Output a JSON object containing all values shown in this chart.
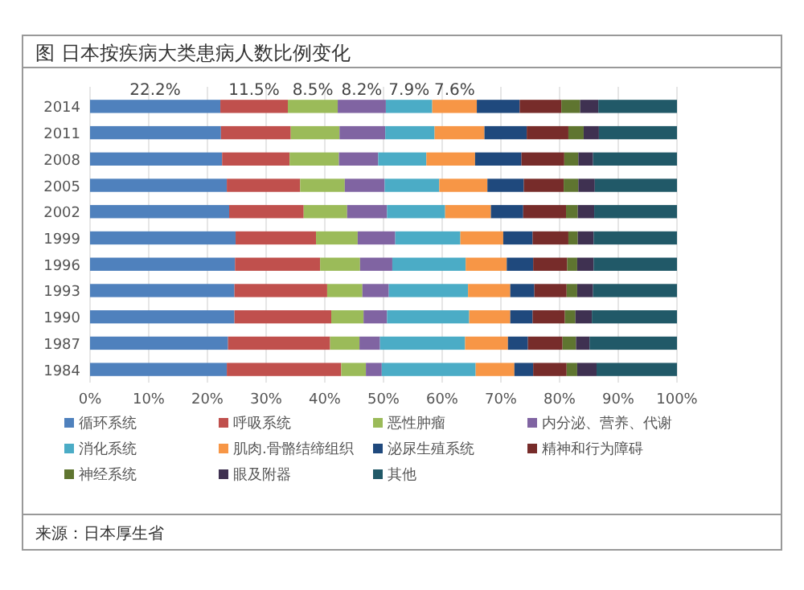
{
  "chart_data": {
    "type": "bar",
    "orientation": "horizontal",
    "stacked": true,
    "title": "图  日本按疾病大类患病人数比例变化",
    "annotations": [
      "来源：日本厚生省"
    ],
    "categories": [
      "2014",
      "2011",
      "2008",
      "2005",
      "2002",
      "1999",
      "1996",
      "1993",
      "1990",
      "1987",
      "1984"
    ],
    "xlim": [
      0,
      100
    ],
    "xticks": [
      {
        "value": 0,
        "label": "0%"
      },
      {
        "value": 10,
        "label": "10%"
      },
      {
        "value": 20,
        "label": "20%"
      },
      {
        "value": 30,
        "label": "30%"
      },
      {
        "value": 40,
        "label": "40%"
      },
      {
        "value": 50,
        "label": "50%"
      },
      {
        "value": 60,
        "label": "60%"
      },
      {
        "value": 70,
        "label": "70%"
      },
      {
        "value": 80,
        "label": "80%"
      },
      {
        "value": 90,
        "label": "90%"
      },
      {
        "value": 100,
        "label": "100%"
      }
    ],
    "grid": "x",
    "legend": "bottom",
    "series": [
      {
        "name": "循环系统",
        "color": "#4f81bd",
        "values": [
          22.2,
          22.3,
          22.5,
          23.3,
          23.7,
          24.8,
          24.7,
          24.6,
          24.6,
          23.5,
          23.3
        ],
        "value_labels": [
          "22.2%",
          null,
          null,
          null,
          null,
          null,
          null,
          null,
          null,
          null,
          null
        ]
      },
      {
        "name": "呼吸系统",
        "color": "#c0504d",
        "values": [
          11.5,
          11.9,
          11.5,
          12.5,
          12.7,
          13.7,
          14.5,
          15.8,
          16.5,
          17.4,
          19.5
        ],
        "value_labels": [
          "11.5%",
          null,
          null,
          null,
          null,
          null,
          null,
          null,
          null,
          null,
          null
        ]
      },
      {
        "name": "恶性肿瘤",
        "color": "#9bbb59",
        "values": [
          8.5,
          8.3,
          8.4,
          7.6,
          7.4,
          7.1,
          6.8,
          6.0,
          5.5,
          5.0,
          4.2
        ],
        "value_labels": [
          "8.5%",
          null,
          null,
          null,
          null,
          null,
          null,
          null,
          null,
          null,
          null
        ]
      },
      {
        "name": "内分泌、营养、代谢",
        "color": "#8064a2",
        "values": [
          8.2,
          7.8,
          6.7,
          6.8,
          6.8,
          6.4,
          5.5,
          4.5,
          4.0,
          3.5,
          2.7
        ],
        "value_labels": [
          "8.2%",
          null,
          null,
          null,
          null,
          null,
          null,
          null,
          null,
          null,
          null
        ]
      },
      {
        "name": "消化系统",
        "color": "#4bacc6",
        "values": [
          7.9,
          8.4,
          8.2,
          9.3,
          9.9,
          11.1,
          12.5,
          13.5,
          14.0,
          14.5,
          16.0
        ],
        "value_labels": [
          "7.9%",
          null,
          null,
          null,
          null,
          null,
          null,
          null,
          null,
          null,
          null
        ]
      },
      {
        "name": "肌肉.骨骼结缔组织",
        "color": "#f79646",
        "values": [
          7.6,
          8.5,
          8.3,
          8.2,
          7.8,
          7.3,
          7.0,
          7.2,
          7.0,
          7.3,
          6.6
        ],
        "value_labels": [
          "7.6%",
          null,
          null,
          null,
          null,
          null,
          null,
          null,
          null,
          null,
          null
        ]
      },
      {
        "name": "泌尿生殖系统",
        "color": "#1f497d",
        "values": [
          7.3,
          7.2,
          7.9,
          6.2,
          5.5,
          5.0,
          4.5,
          4.1,
          3.8,
          3.4,
          3.2
        ]
      },
      {
        "name": "精神和行为障碍",
        "color": "#772c2a",
        "values": [
          7.1,
          7.1,
          7.3,
          6.8,
          7.3,
          6.1,
          5.8,
          5.5,
          5.5,
          5.9,
          5.7
        ]
      },
      {
        "name": "神经系统",
        "color": "#5f7530",
        "values": [
          3.2,
          2.6,
          2.4,
          2.5,
          2.0,
          1.6,
          1.7,
          1.8,
          1.8,
          2.3,
          1.8
        ]
      },
      {
        "name": "眼及附器",
        "color": "#3f3151",
        "values": [
          3.1,
          2.6,
          2.5,
          2.8,
          2.8,
          2.7,
          2.8,
          2.7,
          2.8,
          2.3,
          3.3
        ]
      },
      {
        "name": "其他",
        "color": "#215968",
        "values": [
          13.4,
          13.3,
          14.3,
          14.0,
          14.1,
          14.2,
          14.2,
          14.3,
          14.5,
          14.9,
          13.7
        ]
      }
    ]
  }
}
